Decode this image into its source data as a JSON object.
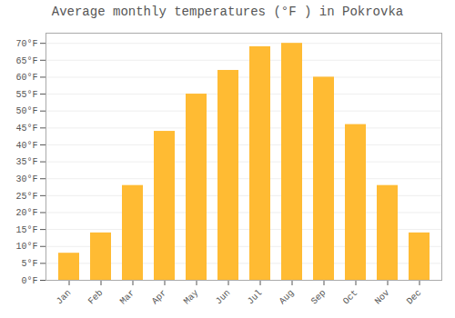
{
  "chart_data": {
    "type": "bar",
    "title": "Average monthly temperatures (°F ) in Pokrovka",
    "categories": [
      "Jan",
      "Feb",
      "Mar",
      "Apr",
      "May",
      "Jun",
      "Jul",
      "Aug",
      "Sep",
      "Oct",
      "Nov",
      "Dec"
    ],
    "values": [
      8,
      14,
      28,
      44,
      55,
      62,
      69,
      70,
      60,
      46,
      28,
      14
    ],
    "color": "#FFBB33",
    "ylim": [
      0,
      73
    ],
    "yticks": [
      {
        "value": 0,
        "label": "0°F"
      },
      {
        "value": 5,
        "label": "5°F"
      },
      {
        "value": 10,
        "label": "10°F"
      },
      {
        "value": 15,
        "label": "15°F"
      },
      {
        "value": 20,
        "label": "20°F"
      },
      {
        "value": 25,
        "label": "25°F"
      },
      {
        "value": 30,
        "label": "30°F"
      },
      {
        "value": 35,
        "label": "35°F"
      },
      {
        "value": 40,
        "label": "40°F"
      },
      {
        "value": 45,
        "label": "45°F"
      },
      {
        "value": 50,
        "label": "50°F"
      },
      {
        "value": 55,
        "label": "55°F"
      },
      {
        "value": 60,
        "label": "60°F"
      },
      {
        "value": 65,
        "label": "65°F"
      },
      {
        "value": 70,
        "label": "70°F"
      }
    ],
    "grid": true
  }
}
